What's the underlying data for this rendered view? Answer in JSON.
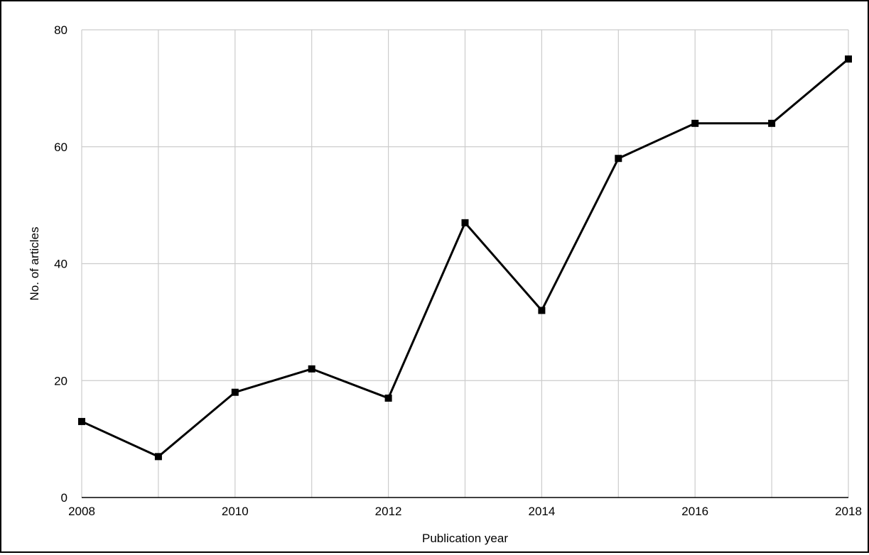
{
  "chart_data": {
    "type": "line",
    "title": "",
    "xlabel": "Publication year",
    "ylabel": "No. of articles",
    "x": [
      2008,
      2009,
      2010,
      2011,
      2012,
      2013,
      2014,
      2015,
      2016,
      2017,
      2018
    ],
    "series": [
      {
        "values": [
          13,
          7,
          18,
          22,
          17,
          47,
          32,
          58,
          64,
          64,
          75
        ],
        "color": "#000000",
        "marker": "square"
      }
    ],
    "xlim": [
      2008,
      2018
    ],
    "ylim": [
      0,
      80
    ],
    "x_ticks": [
      2008,
      2010,
      2012,
      2014,
      2016,
      2018
    ],
    "y_ticks": [
      0,
      20,
      40,
      60,
      80
    ],
    "x_gridlines": [
      2008,
      2009,
      2010,
      2011,
      2012,
      2013,
      2014,
      2015,
      2016,
      2017,
      2018
    ],
    "grid": true,
    "grid_color": "#cccccc",
    "legend": "none"
  }
}
